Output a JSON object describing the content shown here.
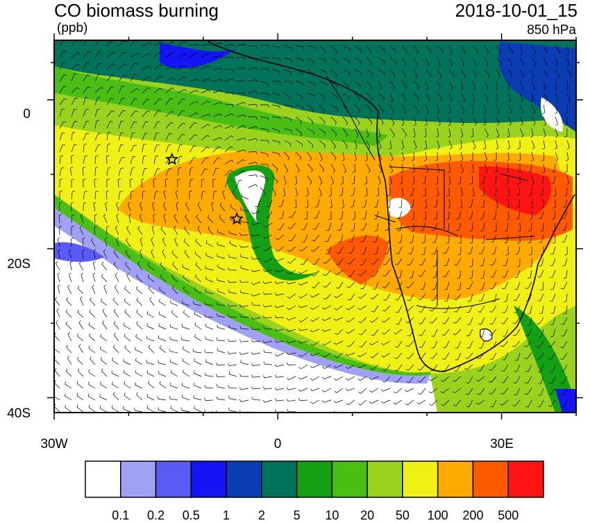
{
  "title": "CO biomass burning",
  "units": "(ppb)",
  "timestamp": "2018-10-01_15",
  "level": "850 hPa",
  "lat_labels": [
    "0",
    "20S",
    "40S"
  ],
  "lon_labels": [
    "30W",
    "0",
    "30E"
  ],
  "colorbar": {
    "colors": [
      "#ffffff",
      "#a0a0f5",
      "#5a5af5",
      "#1414f5",
      "#0a3cb4",
      "#00735a",
      "#14a014",
      "#4bbe14",
      "#9bd21e",
      "#f0f014",
      "#ffaa00",
      "#ff5a00",
      "#ff1414"
    ],
    "labels": [
      "0.1",
      "0.2",
      "0.5",
      "1",
      "2",
      "5",
      "10",
      "20",
      "50",
      "100",
      "200",
      "500"
    ]
  },
  "markers": [
    {
      "name": "star-marker-1",
      "lon": -14.2,
      "lat": -8.0
    },
    {
      "name": "star-marker-2",
      "lon": -5.5,
      "lat": -16.0
    }
  ]
}
